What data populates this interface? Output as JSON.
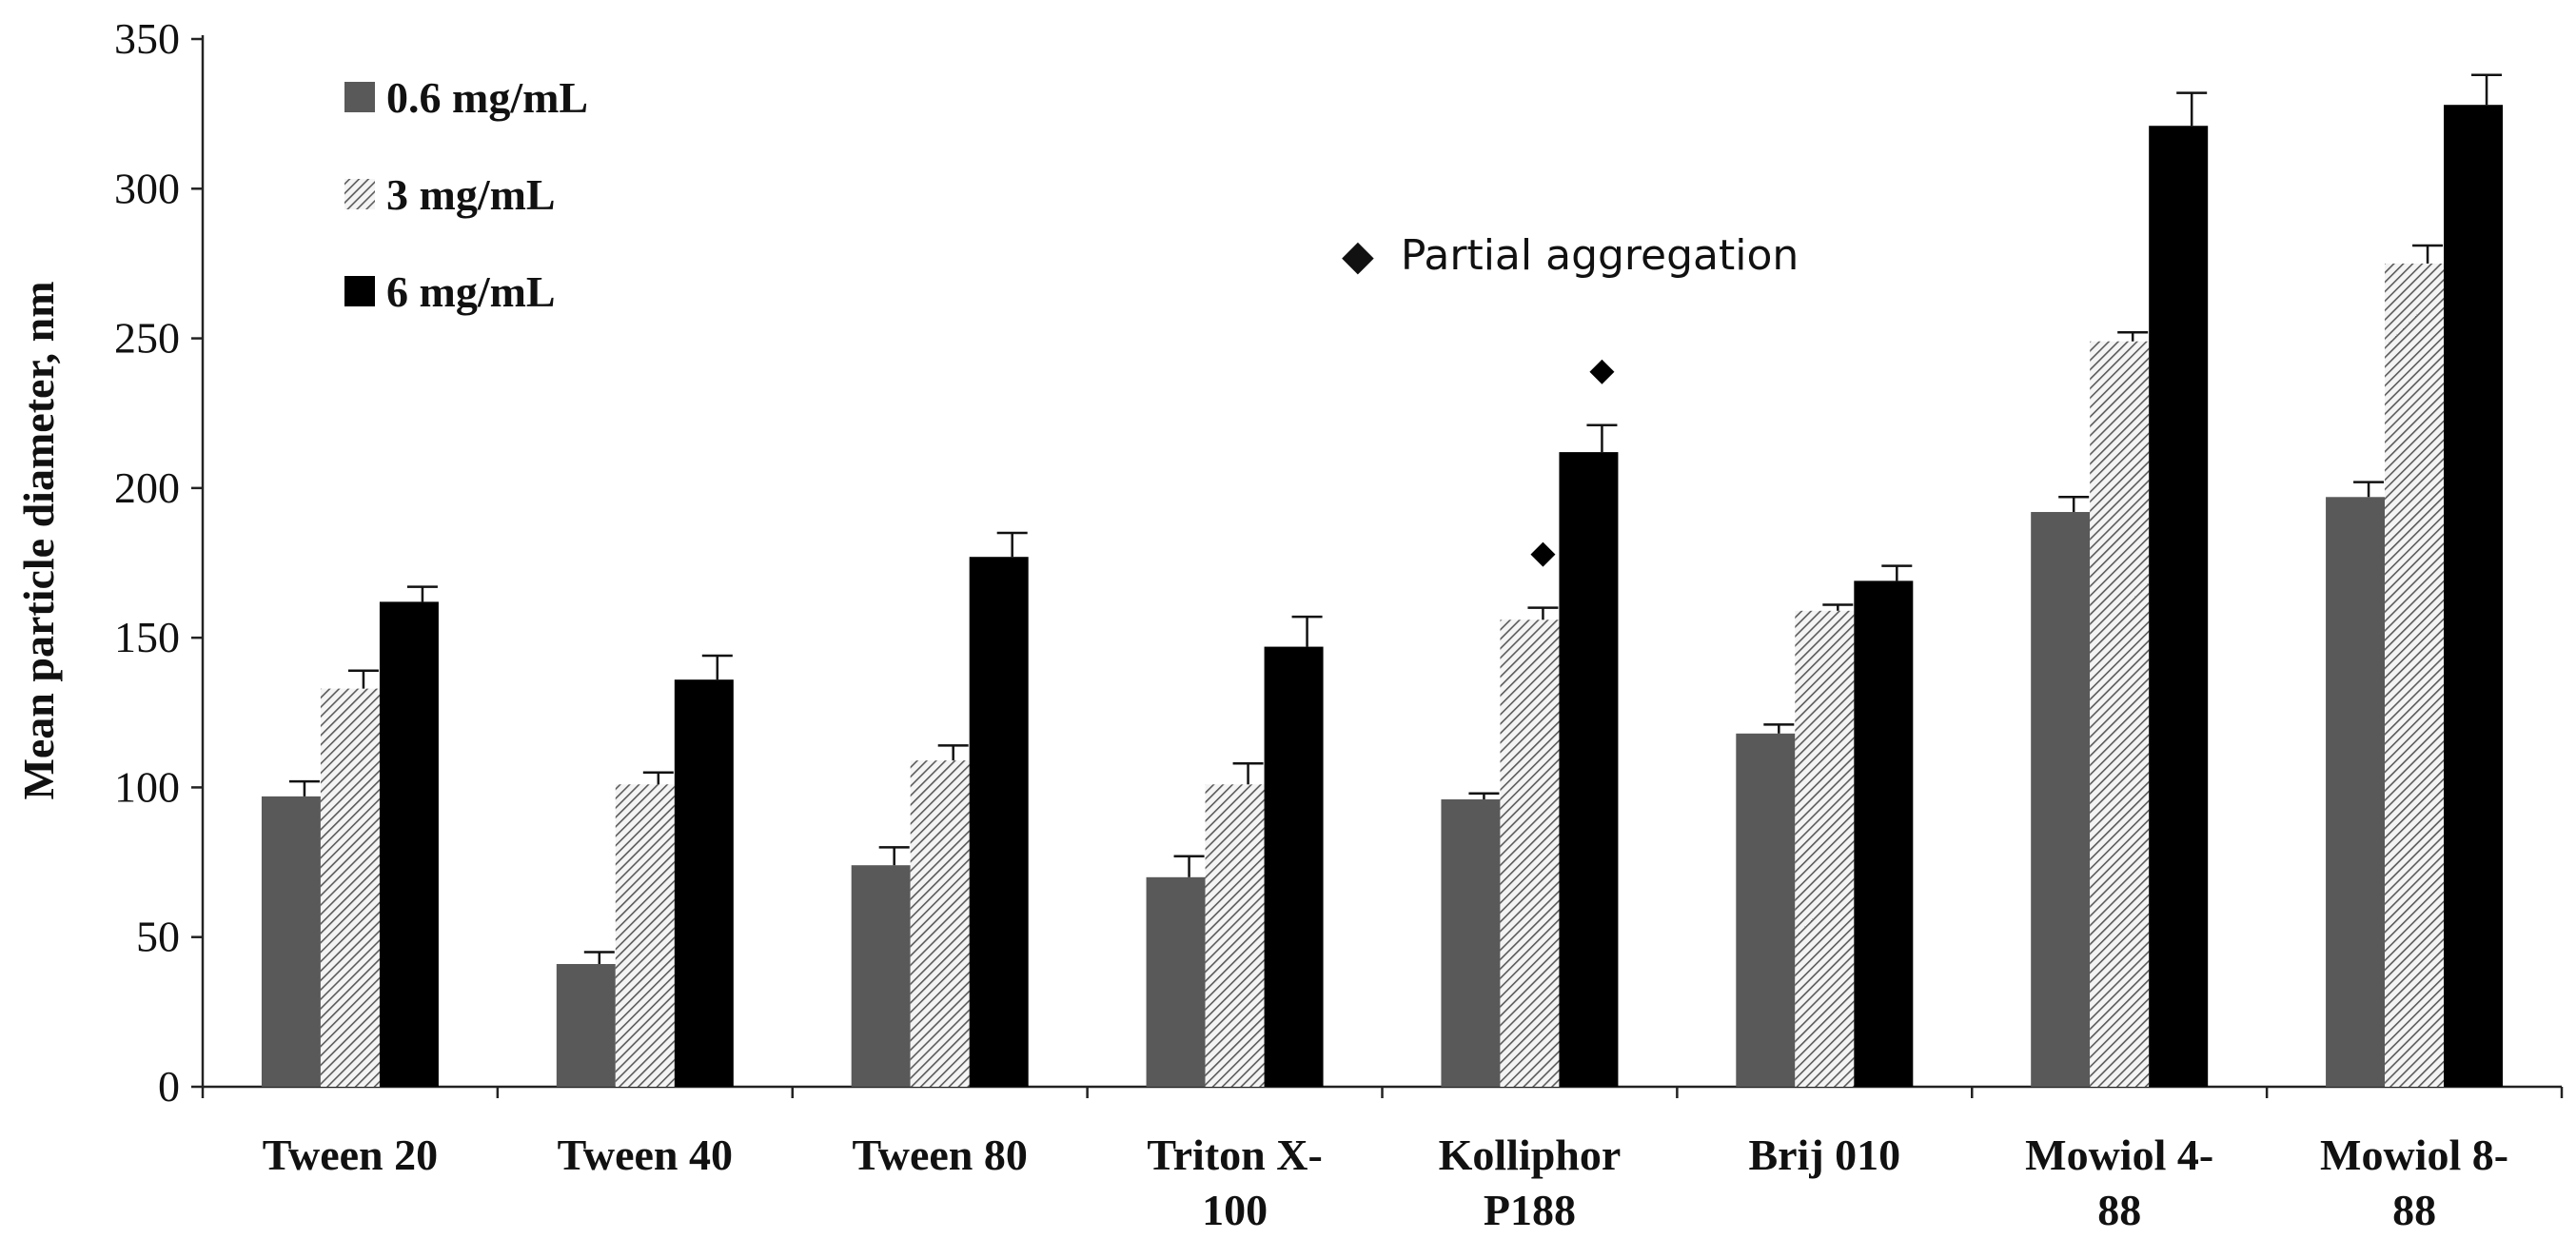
{
  "chart_data": {
    "type": "bar",
    "title": "",
    "xlabel": "",
    "ylabel": "Mean particle diameter, nm",
    "ylim": [
      0,
      350
    ],
    "yticks": [
      0,
      50,
      100,
      150,
      200,
      250,
      300,
      350
    ],
    "grid": false,
    "legend_position": "top-left",
    "categories": [
      [
        "Tween 20"
      ],
      [
        "Tween 40"
      ],
      [
        "Tween 80"
      ],
      [
        "Triton X-",
        "100"
      ],
      [
        "Kolliphor",
        "P188"
      ],
      [
        "Brij 010"
      ],
      [
        "Mowiol 4-",
        "88"
      ],
      [
        "Mowiol 8-",
        "88"
      ]
    ],
    "series": [
      {
        "name": "0.6 mg/mL",
        "style": "solid-gray",
        "color": "#595959",
        "values": [
          97,
          41,
          74,
          70,
          96,
          118,
          192,
          197
        ],
        "errors": [
          5,
          4,
          6,
          7,
          2,
          3,
          5,
          5
        ]
      },
      {
        "name": "3 mg/mL",
        "style": "hatched",
        "color": "#9a9a9a",
        "values": [
          133,
          101,
          109,
          101,
          156,
          159,
          249,
          275
        ],
        "errors": [
          6,
          4,
          5,
          7,
          4,
          2,
          3,
          6
        ]
      },
      {
        "name": "6 mg/mL",
        "style": "solid-black",
        "color": "#000000",
        "values": [
          162,
          136,
          177,
          147,
          212,
          169,
          321,
          328
        ],
        "errors": [
          5,
          8,
          8,
          10,
          9,
          5,
          11,
          10
        ]
      }
    ],
    "annotation": {
      "symbol": "◆",
      "label": "Partial aggregation",
      "marked_bars": [
        {
          "category_index": 4,
          "series_index": 1
        },
        {
          "category_index": 4,
          "series_index": 2
        }
      ]
    }
  }
}
